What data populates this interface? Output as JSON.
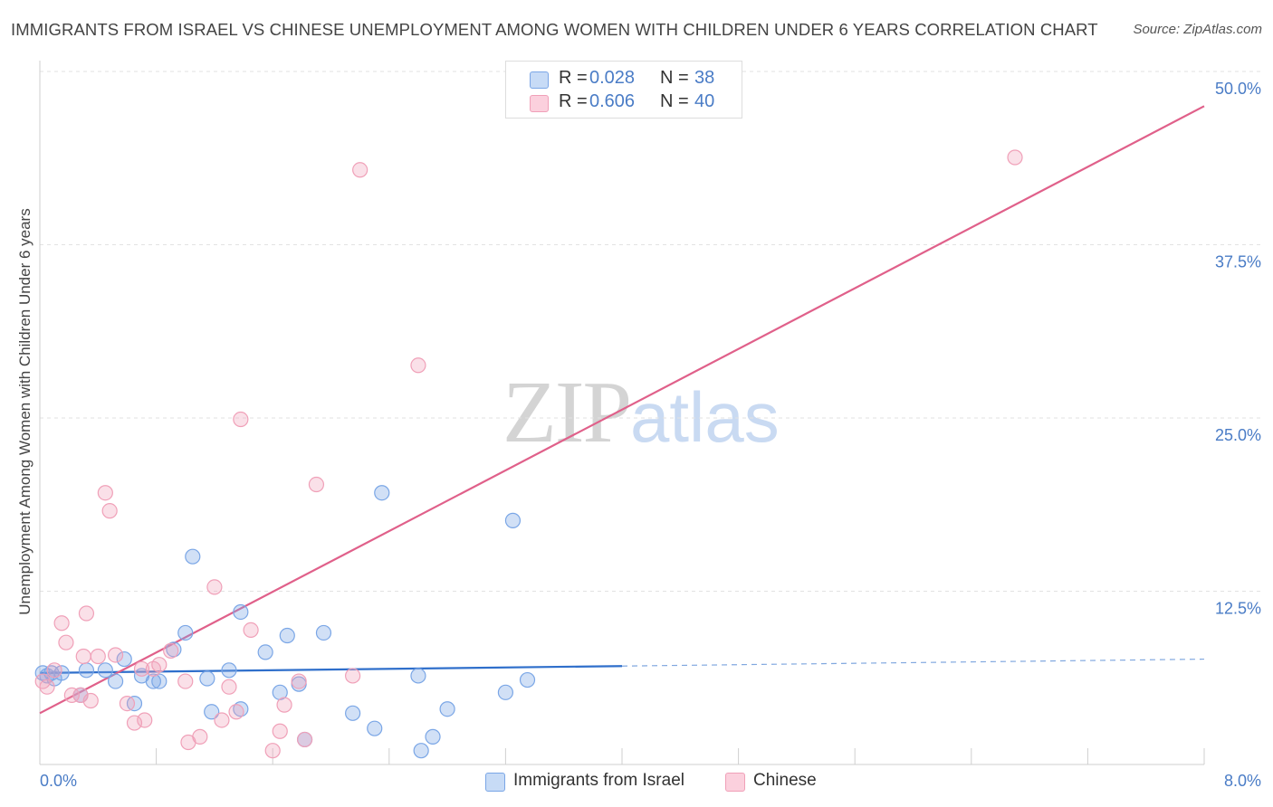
{
  "title": "IMMIGRANTS FROM ISRAEL VS CHINESE UNEMPLOYMENT AMONG WOMEN WITH CHILDREN UNDER 6 YEARS CORRELATION CHART",
  "source": "Source: ZipAtlas.com",
  "watermark": {
    "zip": "ZIP",
    "atlas": "atlas"
  },
  "colors": {
    "israel": "#7aa6e6",
    "chinese": "#f0a0b8",
    "israel_line": "#2f6fcb",
    "chinese_line": "#e0608a"
  },
  "legend": {
    "rows": [
      {
        "r_label": "R =",
        "r_value": "0.028",
        "n_label": "N =",
        "n_value": "38"
      },
      {
        "r_label": "R =",
        "r_value": "0.606",
        "n_label": "N =",
        "n_value": "40"
      }
    ]
  },
  "bottom_legend": {
    "israel": "Immigrants from Israel",
    "chinese": "Chinese"
  },
  "chart_data": {
    "type": "scatter",
    "xlabel": "",
    "ylabel": "Unemployment Among Women with Children Under 6 years",
    "xlim": [
      0,
      8
    ],
    "ylim": [
      0,
      50
    ],
    "x_tick_labels": [
      "0.0%",
      "8.0%"
    ],
    "y_ticks": [
      12.5,
      25.0,
      37.5,
      50.0
    ],
    "y_tick_labels": [
      "12.5%",
      "25.0%",
      "37.5%",
      "50.0%"
    ],
    "grid": true,
    "series": [
      {
        "name": "Immigrants from Israel",
        "points": [
          [
            0.02,
            6.6
          ],
          [
            0.05,
            6.4
          ],
          [
            0.08,
            6.6
          ],
          [
            0.1,
            6.2
          ],
          [
            0.15,
            6.6
          ],
          [
            0.28,
            5.0
          ],
          [
            0.32,
            6.8
          ],
          [
            0.45,
            6.8
          ],
          [
            0.52,
            6.0
          ],
          [
            0.58,
            7.6
          ],
          [
            0.65,
            4.4
          ],
          [
            0.7,
            6.4
          ],
          [
            0.78,
            6.0
          ],
          [
            0.82,
            6.0
          ],
          [
            0.92,
            8.3
          ],
          [
            1.0,
            9.5
          ],
          [
            1.05,
            15.0
          ],
          [
            1.15,
            6.2
          ],
          [
            1.18,
            3.8
          ],
          [
            1.3,
            6.8
          ],
          [
            1.38,
            4.0
          ],
          [
            1.55,
            8.1
          ],
          [
            1.38,
            11.0
          ],
          [
            1.65,
            5.2
          ],
          [
            1.7,
            9.3
          ],
          [
            1.78,
            5.8
          ],
          [
            1.82,
            1.8
          ],
          [
            1.95,
            9.5
          ],
          [
            2.15,
            3.7
          ],
          [
            2.3,
            2.6
          ],
          [
            2.35,
            19.6
          ],
          [
            2.6,
            6.4
          ],
          [
            2.62,
            1.0
          ],
          [
            2.7,
            2.0
          ],
          [
            2.8,
            4.0
          ],
          [
            3.2,
            5.2
          ],
          [
            3.25,
            17.6
          ],
          [
            3.35,
            6.1
          ]
        ],
        "trend": {
          "x0": 0,
          "y0": 6.6,
          "x1": 4.0,
          "y1": 7.1,
          "dashed_to": {
            "x": 8.0,
            "y": 7.6
          }
        }
      },
      {
        "name": "Chinese",
        "points": [
          [
            0.02,
            6.0
          ],
          [
            0.05,
            5.6
          ],
          [
            0.1,
            6.8
          ],
          [
            0.15,
            10.2
          ],
          [
            0.18,
            8.8
          ],
          [
            0.22,
            5.0
          ],
          [
            0.28,
            5.0
          ],
          [
            0.3,
            7.8
          ],
          [
            0.32,
            10.9
          ],
          [
            0.35,
            4.6
          ],
          [
            0.4,
            7.8
          ],
          [
            0.45,
            19.6
          ],
          [
            0.48,
            18.3
          ],
          [
            0.52,
            7.9
          ],
          [
            0.6,
            4.4
          ],
          [
            0.65,
            3.0
          ],
          [
            0.7,
            6.9
          ],
          [
            0.72,
            3.2
          ],
          [
            0.78,
            6.9
          ],
          [
            0.82,
            7.2
          ],
          [
            0.9,
            8.2
          ],
          [
            1.0,
            6.0
          ],
          [
            1.02,
            1.6
          ],
          [
            1.1,
            2.0
          ],
          [
            1.2,
            12.8
          ],
          [
            1.25,
            3.2
          ],
          [
            1.3,
            5.6
          ],
          [
            1.35,
            3.8
          ],
          [
            1.38,
            24.9
          ],
          [
            1.45,
            9.7
          ],
          [
            1.6,
            1.0
          ],
          [
            1.65,
            2.4
          ],
          [
            1.68,
            4.3
          ],
          [
            1.78,
            6.0
          ],
          [
            1.82,
            1.8
          ],
          [
            1.9,
            20.2
          ],
          [
            2.15,
            6.4
          ],
          [
            2.2,
            42.9
          ],
          [
            2.6,
            28.8
          ],
          [
            6.7,
            43.8
          ]
        ],
        "trend": {
          "x0": 0,
          "y0": 3.7,
          "x1": 8.0,
          "y1": 47.5
        }
      }
    ]
  }
}
